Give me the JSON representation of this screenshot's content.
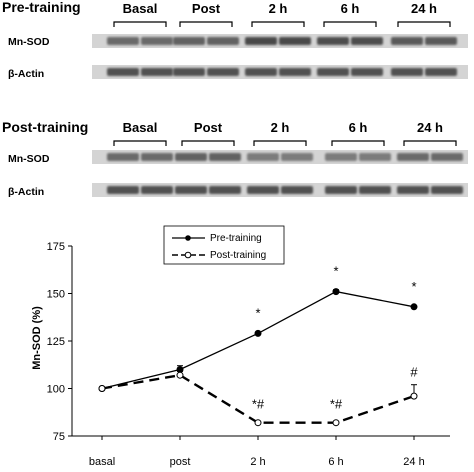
{
  "blots": [
    {
      "title": "Pre-training",
      "groups": [
        "Basal",
        "Post",
        "2 h",
        "6 h",
        "24 h"
      ],
      "rows": [
        {
          "label": "Mn-SOD",
          "intensity": [
            0.55,
            0.55,
            0.6,
            0.6,
            0.75,
            0.75,
            0.72,
            0.72,
            0.65,
            0.65
          ]
        },
        {
          "label": "β-Actin",
          "intensity": [
            0.7,
            0.7,
            0.7,
            0.7,
            0.7,
            0.7,
            0.7,
            0.7,
            0.7,
            0.7
          ]
        }
      ]
    },
    {
      "title": "Post-training",
      "groups": [
        "Basal",
        "Post",
        "2 h",
        "6 h",
        "24 h"
      ],
      "rows": [
        {
          "label": "Mn-SOD",
          "intensity": [
            0.55,
            0.55,
            0.6,
            0.6,
            0.45,
            0.45,
            0.45,
            0.45,
            0.55,
            0.55
          ]
        },
        {
          "label": "β-Actin",
          "intensity": [
            0.7,
            0.7,
            0.7,
            0.7,
            0.7,
            0.7,
            0.7,
            0.7,
            0.7,
            0.7
          ]
        }
      ]
    }
  ],
  "chart_data": {
    "type": "line",
    "categories": [
      "basal",
      "post",
      "2 h",
      "6 h",
      "24 h"
    ],
    "ylabel": "Mn-SOD (%)",
    "xlabel": "",
    "ylim": [
      75,
      175
    ],
    "yticks": [
      "75",
      "100",
      "125",
      "150",
      "175"
    ],
    "grid": false,
    "legend_position": "top-center",
    "series": [
      {
        "name": "Pre-training",
        "style": "solid",
        "marker": "filled-circle",
        "values": [
          100,
          110,
          129,
          151,
          143
        ],
        "errors": [
          0,
          2,
          0,
          1,
          0
        ],
        "annotations": [
          "",
          "",
          "*",
          "*",
          "*"
        ]
      },
      {
        "name": "Post-training",
        "style": "dashed",
        "marker": "open-circle",
        "values": [
          100,
          107,
          82,
          82,
          96
        ],
        "errors": [
          0,
          2,
          0,
          0,
          6
        ],
        "annotations": [
          "",
          "",
          "*#",
          "*#",
          "#"
        ]
      }
    ]
  }
}
